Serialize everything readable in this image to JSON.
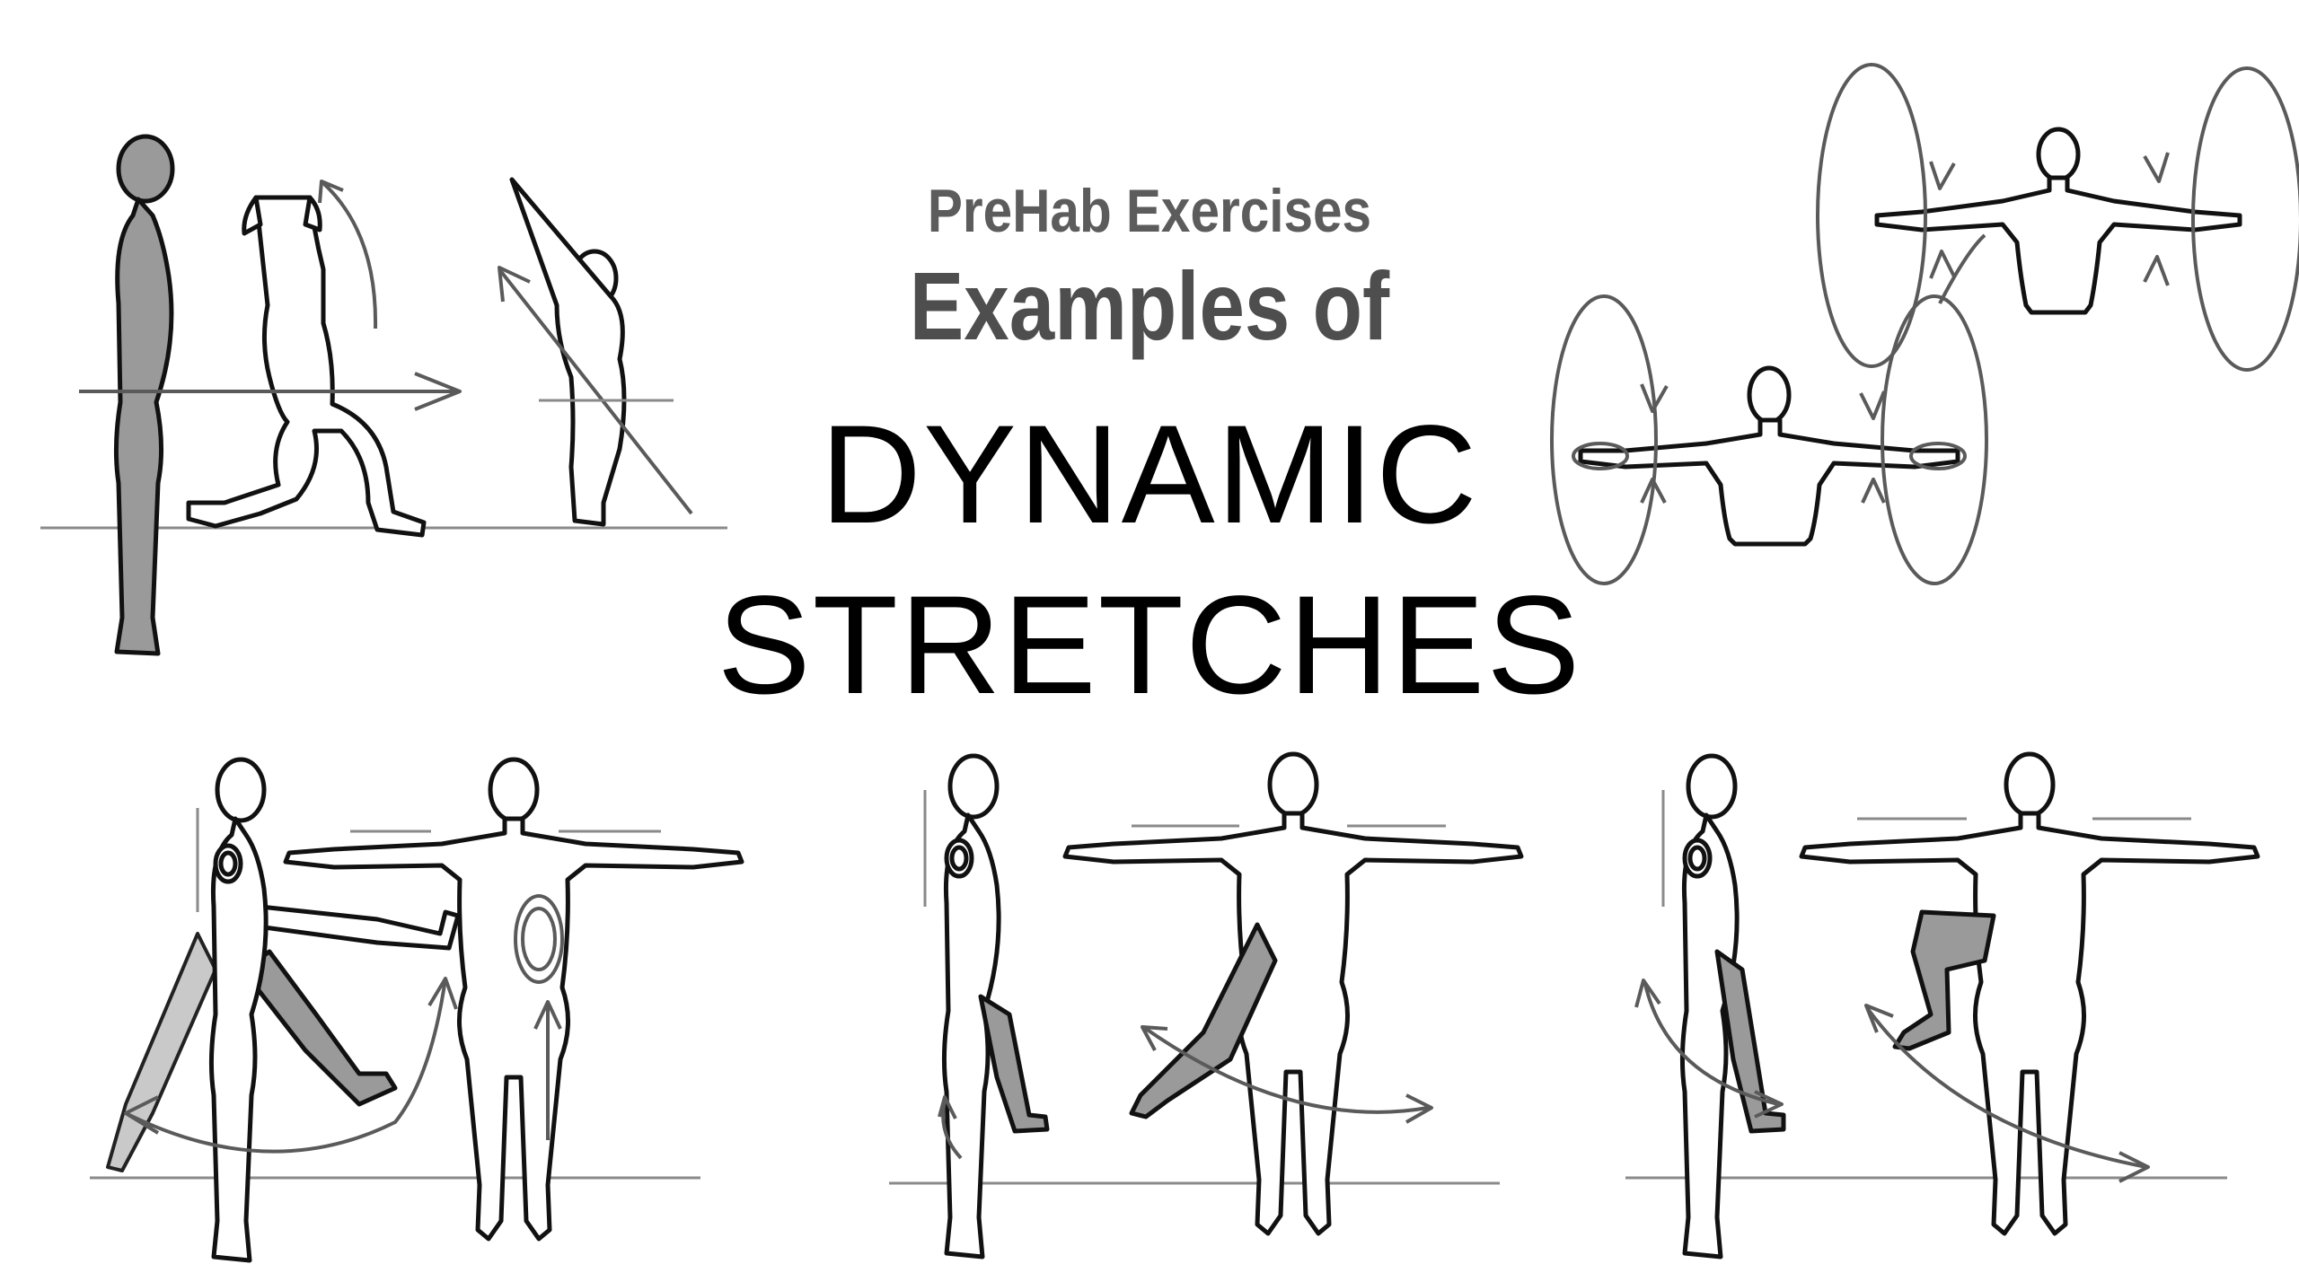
{
  "heading": {
    "line1": "PreHab Exercises",
    "line2": "Examples of",
    "line3": "DYNAMIC",
    "line4": "STRETCHES"
  },
  "colors": {
    "title_dark": "#000000",
    "subtitle_gray": "#5c5c5c",
    "figure_fill": "#ffffff",
    "figure_shadow": "#9a9a9a",
    "arrow_gray": "#5a5a5a"
  },
  "illustrations": [
    {
      "name": "lunge-with-overhead-reach"
    },
    {
      "name": "arm-circles"
    },
    {
      "name": "front-leg-swings"
    },
    {
      "name": "lateral-leg-swings"
    },
    {
      "name": "knee-hug-swings"
    }
  ]
}
